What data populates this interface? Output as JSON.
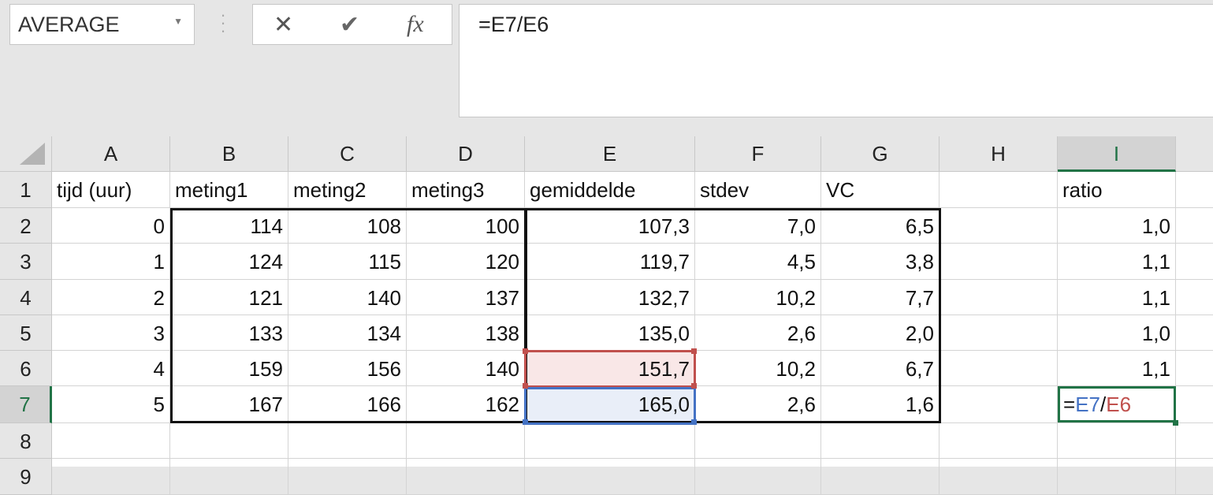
{
  "formula_bar": {
    "name_box": "AVERAGE",
    "cancel_icon": "✕",
    "enter_icon": "✔",
    "fx_label": "fx",
    "formula": "=E7/E6"
  },
  "columns": [
    "A",
    "B",
    "C",
    "D",
    "E",
    "F",
    "G",
    "H",
    "I",
    ""
  ],
  "row_numbers": [
    "1",
    "2",
    "3",
    "4",
    "5",
    "6",
    "7",
    "8",
    "9"
  ],
  "rows": [
    [
      "tijd (uur)",
      "meting1",
      "meting2",
      "meting3",
      "gemiddelde",
      "stdev",
      "VC",
      "",
      "ratio",
      ""
    ],
    [
      "0",
      "114",
      "108",
      "100",
      "107,3",
      "7,0",
      "6,5",
      "",
      "1,0",
      ""
    ],
    [
      "1",
      "124",
      "115",
      "120",
      "119,7",
      "4,5",
      "3,8",
      "",
      "1,1",
      ""
    ],
    [
      "2",
      "121",
      "140",
      "137",
      "132,7",
      "10,2",
      "7,7",
      "",
      "1,1",
      ""
    ],
    [
      "3",
      "133",
      "134",
      "138",
      "135,0",
      "2,6",
      "2,0",
      "",
      "1,0",
      ""
    ],
    [
      "4",
      "159",
      "156",
      "140",
      "151,7",
      "10,2",
      "6,7",
      "",
      "1,1",
      ""
    ],
    [
      "5",
      "167",
      "166",
      "162",
      "165,0",
      "2,6",
      "1,6",
      "",
      "",
      ""
    ],
    [
      "",
      "",
      "",
      "",
      "",
      "",
      "",
      "",
      "",
      ""
    ],
    [
      "",
      "",
      "",
      "",
      "",
      "",
      "",
      "",
      "",
      ""
    ]
  ],
  "active_cell": {
    "ref": "I7",
    "formula_prefix": "=",
    "ref1": "E7",
    "sep": "/",
    "ref2": "E6"
  },
  "colors": {
    "ref1": "#4472c4",
    "ref2": "#c0504d",
    "ref1_fill": "#e9eef8",
    "ref2_fill": "#f9e7e7",
    "active": "#217346"
  }
}
